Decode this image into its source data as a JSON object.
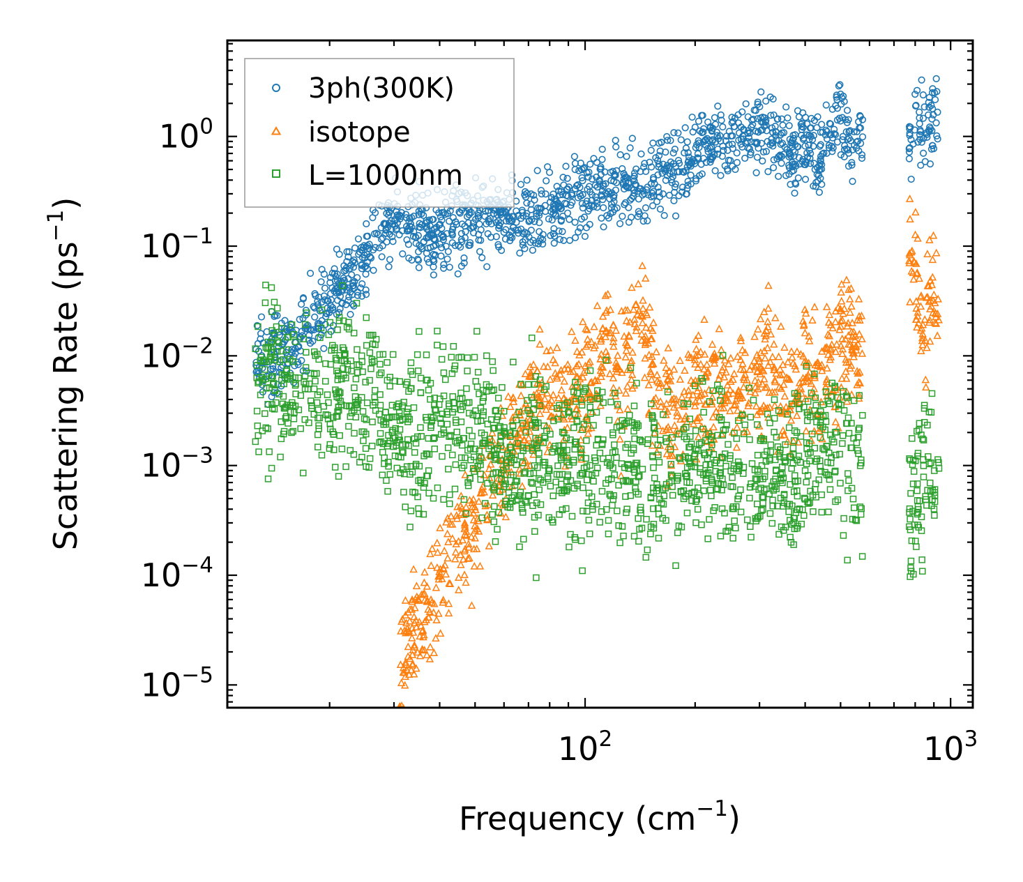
{
  "chart_data": {
    "type": "scatter",
    "xscale": "log",
    "yscale": "log",
    "xlim": [
      10.5,
      1150
    ],
    "ylim": [
      6.2e-06,
      7.5
    ],
    "xlabel": {
      "text": "Frequency (cm",
      "sup": "−1",
      "close": ")"
    },
    "ylabel": {
      "text": "Scattering Rate (ps",
      "sup": "−1",
      "close": ")"
    },
    "xticks": [
      {
        "value": 100,
        "base": "10",
        "exp": "2"
      },
      {
        "value": 1000,
        "base": "10",
        "exp": "3"
      }
    ],
    "yticks": [
      {
        "value": 1,
        "base": "10",
        "exp": "0"
      },
      {
        "value": 0.1,
        "base": "10",
        "exp": "−1"
      },
      {
        "value": 0.01,
        "base": "10",
        "exp": "−2"
      },
      {
        "value": 0.001,
        "base": "10",
        "exp": "−3"
      },
      {
        "value": 0.0001,
        "base": "10",
        "exp": "−4"
      },
      {
        "value": 1e-05,
        "base": "10",
        "exp": "−5"
      }
    ],
    "legend_position": "top-left",
    "series": [
      {
        "name": "3ph(300K)",
        "marker": "circle",
        "color": "#1f77b4",
        "anchors": [
          [
            12.5,
            0.0095
          ],
          [
            13.5,
            0.009
          ],
          [
            16,
            0.014
          ],
          [
            18,
            0.022
          ],
          [
            20,
            0.035
          ],
          [
            23,
            0.05
          ],
          [
            26,
            0.085
          ],
          [
            27,
            0.13
          ],
          [
            30,
            0.18
          ],
          [
            35,
            0.15
          ],
          [
            40,
            0.13
          ],
          [
            45,
            0.15
          ],
          [
            50,
            0.17
          ],
          [
            60,
            0.2
          ],
          [
            70,
            0.19
          ],
          [
            80,
            0.2
          ],
          [
            90,
            0.24
          ],
          [
            100,
            0.3
          ],
          [
            110,
            0.38
          ],
          [
            130,
            0.33
          ],
          [
            150,
            0.38
          ],
          [
            170,
            0.45
          ],
          [
            200,
            0.6
          ],
          [
            220,
            0.85
          ],
          [
            250,
            0.9
          ],
          [
            280,
            1.1
          ],
          [
            320,
            1.3
          ],
          [
            360,
            0.8
          ],
          [
            400,
            0.9
          ],
          [
            440,
            0.6
          ],
          [
            470,
            1.1
          ],
          [
            490,
            2.0
          ],
          [
            510,
            1.2
          ],
          [
            540,
            0.7
          ],
          [
            560,
            1.0
          ],
          [
            780,
            0.75
          ],
          [
            800,
            1.4
          ],
          [
            850,
            0.9
          ],
          [
            900,
            1.3
          ],
          [
            930,
            1.5
          ]
        ],
        "count": 1600,
        "spread": 0.17
      },
      {
        "name": "isotope",
        "marker": "triangle",
        "color": "#ff7f0e",
        "anchors": [
          [
            31,
            1.2e-05
          ],
          [
            33,
            2.5e-05
          ],
          [
            35,
            4e-05
          ],
          [
            40,
            8e-05
          ],
          [
            45,
            0.00018
          ],
          [
            50,
            0.00032
          ],
          [
            55,
            0.0006
          ],
          [
            60,
            0.0012
          ],
          [
            65,
            0.0025
          ],
          [
            70,
            0.0035
          ],
          [
            80,
            0.004
          ],
          [
            90,
            0.005
          ],
          [
            100,
            0.005
          ],
          [
            110,
            0.009
          ],
          [
            115,
            0.022
          ],
          [
            125,
            0.006
          ],
          [
            135,
            0.012
          ],
          [
            140,
            0.03
          ],
          [
            150,
            0.008
          ],
          [
            160,
            0.004
          ],
          [
            170,
            0.0025
          ],
          [
            180,
            0.003
          ],
          [
            200,
            0.006
          ],
          [
            220,
            0.004
          ],
          [
            250,
            0.005
          ],
          [
            280,
            0.006
          ],
          [
            320,
            0.007
          ],
          [
            360,
            0.004
          ],
          [
            400,
            0.009
          ],
          [
            450,
            0.006
          ],
          [
            500,
            0.012
          ],
          [
            540,
            0.012
          ],
          [
            560,
            0.009
          ],
          [
            780,
            0.1
          ],
          [
            800,
            0.05
          ],
          [
            850,
            0.02
          ],
          [
            900,
            0.06
          ],
          [
            930,
            0.02
          ]
        ],
        "count": 1300,
        "spread": 0.28
      },
      {
        "name": "L=1000nm",
        "marker": "square",
        "color": "#2ca02c",
        "anchors": [
          [
            12.5,
            0.0053
          ],
          [
            14.5,
            0.0055
          ],
          [
            16,
            0.0055
          ],
          [
            20,
            0.005
          ],
          [
            25,
            0.0045
          ],
          [
            30,
            0.0025
          ],
          [
            35,
            0.0022
          ],
          [
            40,
            0.0025
          ],
          [
            50,
            0.002
          ],
          [
            60,
            0.0015
          ],
          [
            70,
            0.0014
          ],
          [
            80,
            0.0012
          ],
          [
            100,
            0.0011
          ],
          [
            120,
            0.001
          ],
          [
            150,
            0.0009
          ],
          [
            180,
            0.0009
          ],
          [
            200,
            0.0012
          ],
          [
            250,
            0.0009
          ],
          [
            300,
            0.0012
          ],
          [
            350,
            0.0008
          ],
          [
            400,
            0.0011
          ],
          [
            450,
            0.0013
          ],
          [
            500,
            0.0013
          ],
          [
            560,
            0.0011
          ],
          [
            780,
            0.0004
          ],
          [
            800,
            0.0006
          ],
          [
            850,
            0.0008
          ],
          [
            900,
            0.0012
          ],
          [
            930,
            0.0009
          ]
        ],
        "count": 1700,
        "spread": 0.36
      }
    ]
  }
}
